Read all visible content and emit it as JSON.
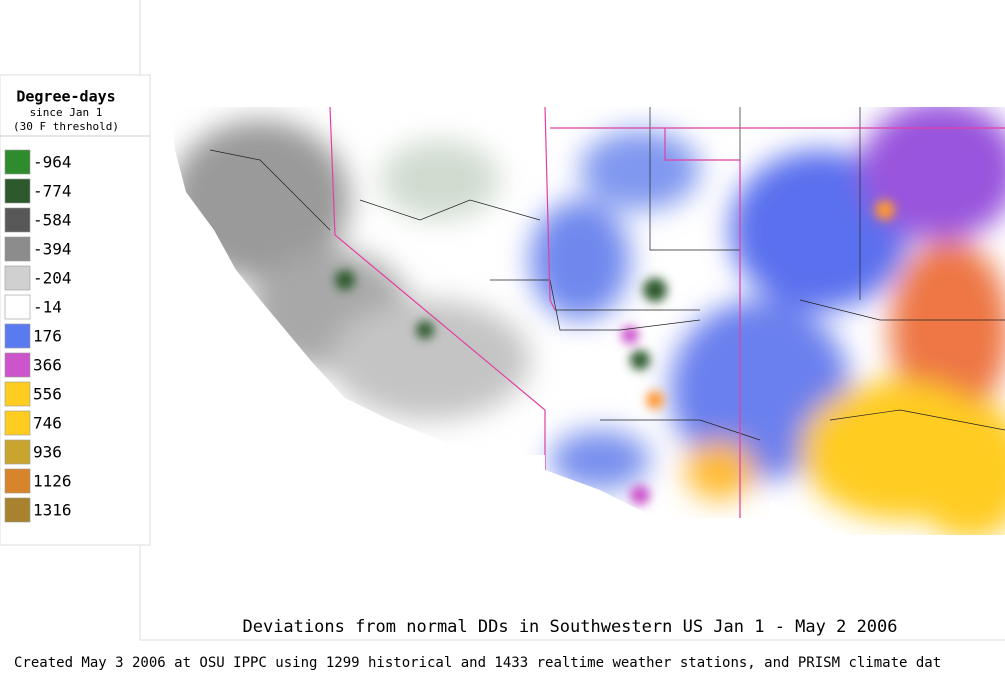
{
  "legend": {
    "title": "Degree-days",
    "subtitle": "since Jan 1",
    "note": "(30 F threshold)",
    "items": [
      {
        "value": -964,
        "color": "#2e8b2e"
      },
      {
        "value": -774,
        "color": "#2d5a2d"
      },
      {
        "value": -584,
        "color": "#585858"
      },
      {
        "value": -394,
        "color": "#8c8c8c"
      },
      {
        "value": -204,
        "color": "#d0d0d0"
      },
      {
        "value": -14,
        "color": "#ffffff"
      },
      {
        "value": 176,
        "color": "#5a7af0"
      },
      {
        "value": 366,
        "color": "#cc55cc"
      },
      {
        "value": 556,
        "color": "#ffcc22"
      },
      {
        "value": 746,
        "color": "#ffcc22"
      },
      {
        "value": 936,
        "color": "#c9a530"
      },
      {
        "value": 1126,
        "color": "#d8842a"
      },
      {
        "value": 1316,
        "color": "#a8822e"
      }
    ]
  },
  "caption": "Deviations from normal DDs in Southwestern US Jan 1 - May 2 2006",
  "credit": "Created May 3 2006 at OSU IPPC using 1299 historical and 1433 realtime weather stations, and PRISM climate dat"
}
